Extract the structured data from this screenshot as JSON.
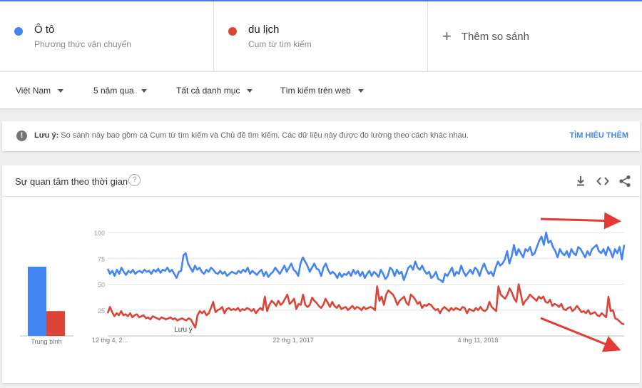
{
  "terms": [
    {
      "name": "Ô tô",
      "sub": "Phương thức vận chuyển",
      "color": "#4285f4"
    },
    {
      "name": "du lịch",
      "sub": "Cụm từ tìm kiếm",
      "color": "#db4437"
    }
  ],
  "add_compare": {
    "icon": "plus-icon",
    "label": "Thêm so sánh"
  },
  "filters": {
    "region": "Việt Nam",
    "time": "5 năm qua",
    "category": "Tất cả danh mục",
    "search_type": "Tìm kiếm trên web"
  },
  "notice": {
    "bold": "Lưu ý:",
    "text": " So sánh này bao gồm cả Cụm từ tìm kiếm và Chủ đề tìm kiếm. Các dữ liệu này được đo lường theo cách khác nhau.",
    "link": "TÌM HIỂU THÊM"
  },
  "card": {
    "title": "Sự quan tâm theo thời gian",
    "help": "?",
    "icons": [
      "download-icon",
      "embed-icon",
      "share-icon"
    ]
  },
  "chart_data": {
    "type": "line",
    "y_ticks": [
      "100",
      "75",
      "50",
      "25"
    ],
    "ylim": [
      0,
      100
    ],
    "x_ticks": [
      "12 thg 4, 2...",
      "22 thg 1, 2017",
      "4 thg 11, 2018"
    ],
    "average_label": "Trung bình",
    "note_label": "Lưu ý",
    "averages": [
      {
        "name": "Ô tô",
        "value": 67
      },
      {
        "name": "du lịch",
        "value": 24
      }
    ],
    "colors": {
      "Ô tô": "#4285f4",
      "du lịch": "#db4437",
      "annotation": "#e53935"
    },
    "series": [
      {
        "name": "Ô tô",
        "values": [
          65,
          60,
          63,
          58,
          64,
          60,
          66,
          62,
          59,
          63,
          61,
          64,
          60,
          62,
          63,
          61,
          64,
          62,
          63,
          60,
          64,
          62,
          65,
          61,
          64,
          63,
          66,
          62,
          64,
          60,
          56,
          62,
          63,
          78,
          80,
          70,
          66,
          62,
          68,
          64,
          66,
          62,
          60,
          64,
          62,
          66,
          64,
          61,
          60,
          63,
          60,
          62,
          58,
          60,
          62,
          61,
          60,
          63,
          61,
          64,
          62,
          66,
          60,
          63,
          61,
          59,
          62,
          64,
          58,
          62,
          57,
          60,
          62,
          66,
          63,
          60,
          64,
          68,
          62,
          66,
          70,
          64,
          62,
          58,
          70,
          76,
          72,
          68,
          62,
          66,
          70,
          65,
          64,
          58,
          66,
          70,
          64,
          60,
          62,
          60,
          56,
          61,
          57,
          60,
          59,
          62,
          58,
          64,
          60,
          63,
          58,
          62,
          56,
          60,
          63,
          58,
          62,
          60,
          57,
          64,
          60,
          55,
          58,
          66,
          64,
          58,
          64,
          60,
          62,
          54,
          60,
          66,
          68,
          64,
          72,
          66,
          64,
          68,
          63,
          60,
          62,
          56,
          58,
          62,
          55,
          54,
          52,
          60,
          58,
          62,
          66,
          58,
          62,
          60,
          68,
          62,
          58,
          61,
          64,
          60,
          66,
          64,
          58,
          65,
          70,
          64,
          60,
          62,
          58,
          66,
          72,
          68,
          70,
          74,
          82,
          70,
          77,
          88,
          78,
          84,
          80,
          76,
          84,
          82,
          86,
          78,
          80,
          86,
          92,
          96,
          88,
          100,
          90,
          92,
          86,
          82,
          76,
          84,
          80,
          78,
          82,
          76,
          84,
          80,
          78,
          86,
          84,
          80,
          76,
          82,
          78,
          84,
          86,
          88,
          82,
          80,
          84,
          78,
          86,
          82,
          76,
          84,
          80,
          86,
          74,
          88
        ]
      },
      {
        "name": "du lịch",
        "values": [
          22,
          28,
          23,
          19,
          22,
          20,
          24,
          20,
          21,
          19,
          22,
          18,
          20,
          21,
          18,
          19,
          20,
          17,
          18,
          16,
          19,
          18,
          17,
          16,
          18,
          17,
          16,
          17,
          18,
          16,
          17,
          15,
          16,
          17,
          16,
          15,
          17,
          16,
          12,
          8,
          20,
          24,
          22,
          24,
          20,
          22,
          27,
          33,
          23,
          25,
          26,
          28,
          22,
          26,
          27,
          25,
          26,
          25,
          27,
          24,
          26,
          25,
          27,
          26,
          24,
          26,
          22,
          25,
          27,
          25,
          38,
          24,
          30,
          34,
          32,
          29,
          34,
          30,
          32,
          36,
          40,
          31,
          33,
          36,
          26,
          31,
          30,
          40,
          30,
          28,
          30,
          37,
          34,
          32,
          29,
          27,
          30,
          36,
          32,
          28,
          33,
          29,
          27,
          30,
          26,
          27,
          28,
          25,
          27,
          29,
          26,
          28,
          27,
          25,
          28,
          26,
          27,
          28,
          27,
          25,
          48,
          34,
          38,
          30,
          40,
          44,
          42,
          40,
          36,
          30,
          34,
          36,
          38,
          32,
          30,
          40,
          38,
          35,
          31,
          33,
          27,
          30,
          29,
          31,
          30,
          27,
          25,
          26,
          22,
          26,
          28,
          26,
          24,
          27,
          25,
          27,
          26,
          25,
          28,
          27,
          22,
          26,
          25,
          24,
          27,
          25,
          28,
          25,
          24,
          26,
          33,
          28,
          26,
          24,
          48,
          40,
          38,
          36,
          40,
          46,
          42,
          36,
          33,
          50,
          40,
          30,
          34,
          36,
          40,
          38,
          36,
          34,
          38,
          36,
          38,
          33,
          32,
          35,
          29,
          31,
          30,
          28,
          31,
          26,
          25,
          27,
          28,
          24,
          26,
          29,
          26,
          23,
          24,
          22,
          25,
          21,
          22,
          23,
          20,
          19,
          22,
          20,
          18,
          38,
          24,
          25,
          17,
          16,
          14,
          12,
          11
        ]
      }
    ]
  }
}
